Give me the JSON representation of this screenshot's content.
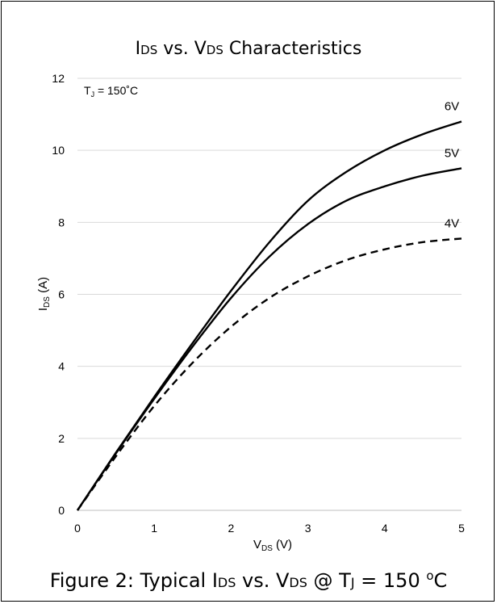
{
  "chart_data": {
    "type": "line",
    "title": {
      "main": "I",
      "sub": "DS",
      "mid": " vs. V",
      "sub2": "DS",
      "tail": " Characteristics"
    },
    "xlabel": {
      "main": "V",
      "sub": "DS",
      "tail": " (V)"
    },
    "ylabel": {
      "main": "I",
      "sub": "DS",
      "tail": " (A)"
    },
    "xlim": [
      0,
      5
    ],
    "ylim": [
      0,
      12
    ],
    "xticks": [
      0,
      1,
      2,
      3,
      4,
      5
    ],
    "yticks": [
      0,
      2,
      4,
      6,
      8,
      10,
      12
    ],
    "grid": "horizontal",
    "annotation": {
      "main": "T",
      "sub": "J",
      "tail": " = 150˚C"
    },
    "series": [
      {
        "name": "6V",
        "dash": "solid",
        "color": "#000000",
        "x": [
          0,
          0.5,
          1,
          1.5,
          2,
          2.5,
          3,
          3.5,
          4,
          4.5,
          5
        ],
        "y": [
          0,
          1.6,
          3.15,
          4.65,
          6.1,
          7.45,
          8.6,
          9.4,
          10.0,
          10.45,
          10.8
        ]
      },
      {
        "name": "5V",
        "dash": "solid",
        "color": "#000000",
        "x": [
          0,
          0.5,
          1,
          1.5,
          2,
          2.5,
          3,
          3.5,
          4,
          4.5,
          5
        ],
        "y": [
          0,
          1.58,
          3.1,
          4.55,
          5.9,
          7.05,
          7.95,
          8.6,
          9.0,
          9.3,
          9.5
        ]
      },
      {
        "name": "4V",
        "dash": "dashed",
        "color": "#000000",
        "x": [
          0,
          0.5,
          1,
          1.5,
          2,
          2.5,
          3,
          3.5,
          4,
          4.5,
          5
        ],
        "y": [
          0,
          1.5,
          2.9,
          4.1,
          5.1,
          5.9,
          6.5,
          6.95,
          7.25,
          7.45,
          7.55
        ]
      }
    ]
  },
  "caption": {
    "p1": "Figure 2: Typical I",
    "s1": "DS",
    "p2": " vs. V",
    "s2": "DS",
    "p3": " @ T",
    "s3": "J",
    "p4": " = 150 ",
    "sup": "o",
    "p5": "C"
  }
}
